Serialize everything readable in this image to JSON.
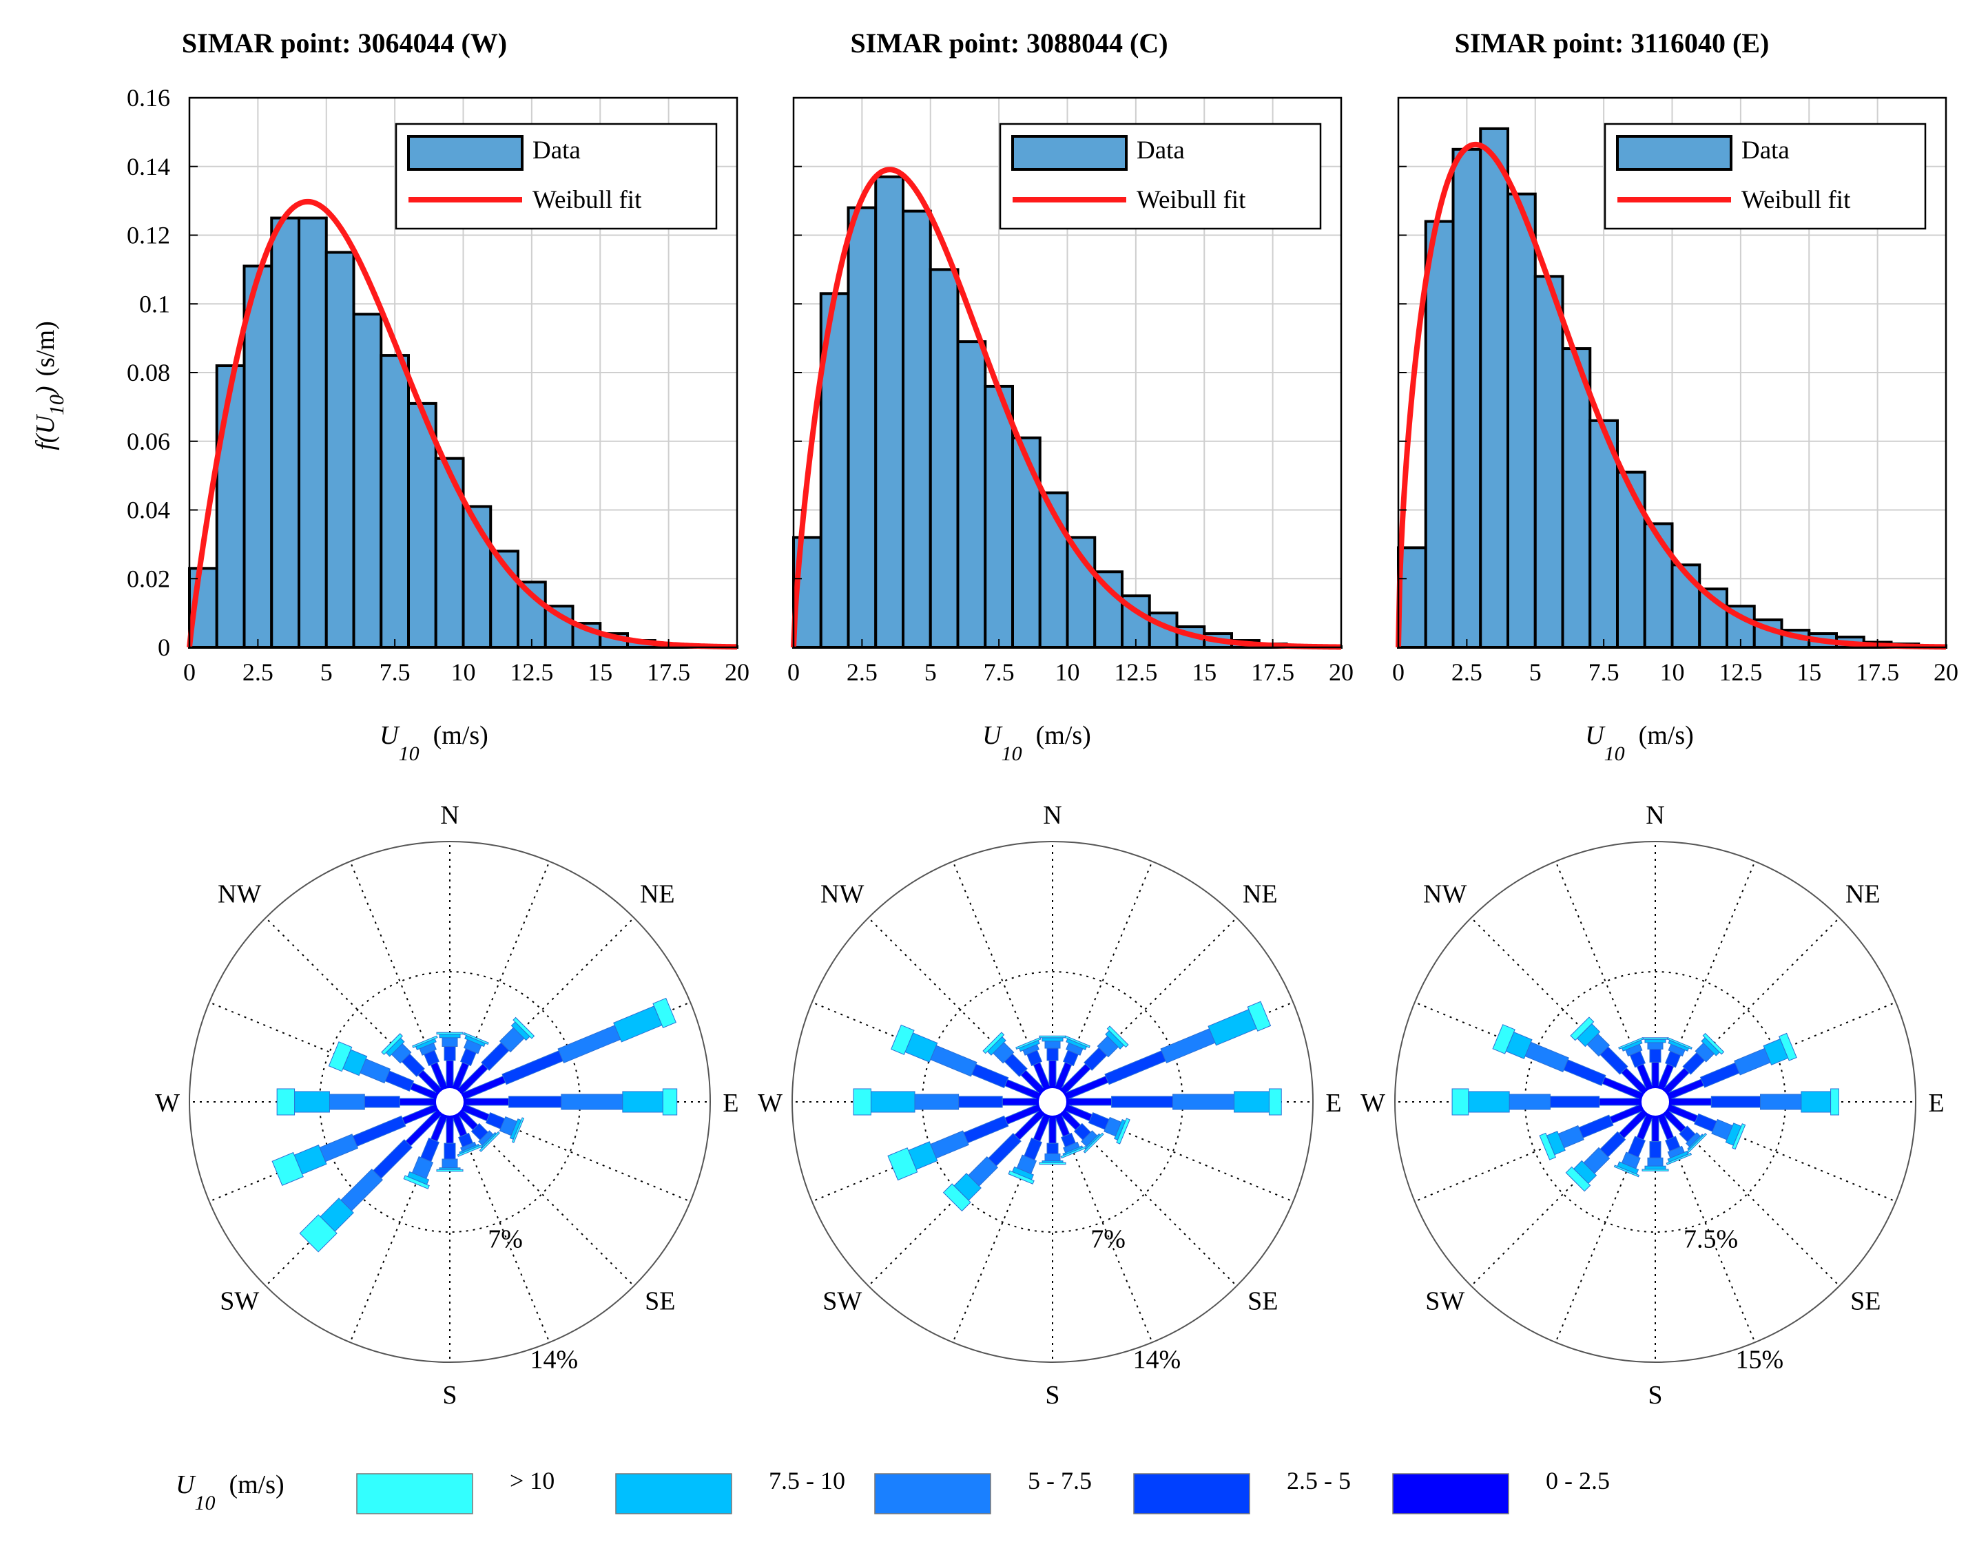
{
  "figure": {
    "ylabel_prefix": "f(U",
    "ylabel_sub": "10",
    "ylabel_suffix": ")",
    "ylabel_unit": "(s/m)",
    "xlabel_main": "U",
    "xlabel_sub": "10",
    "xlabel_unit": "(m/s)"
  },
  "chart_data": [
    {
      "type": "bar",
      "title": "SIMAR point: 3064044 (W)",
      "legend": [
        "Data",
        "Weibull fit"
      ],
      "legend_position": "top-right",
      "grid": true,
      "xlim": [
        0,
        20
      ],
      "ylim": [
        0,
        0.16
      ],
      "xticks": [
        "0",
        "2.5",
        "5",
        "7.5",
        "10",
        "12.5",
        "15",
        "17.5",
        "20"
      ],
      "yticks": [
        "0",
        "0.02",
        "0.04",
        "0.06",
        "0.08",
        "0.1",
        "0.12",
        "0.14",
        "0.16"
      ],
      "bin_width": 1,
      "bin_starts": [
        0,
        1,
        2,
        3,
        4,
        5,
        6,
        7,
        8,
        9,
        10,
        11,
        12,
        13,
        14,
        15,
        16,
        17,
        18,
        19
      ],
      "values": [
        0.023,
        0.082,
        0.111,
        0.125,
        0.125,
        0.115,
        0.097,
        0.085,
        0.071,
        0.055,
        0.041,
        0.028,
        0.019,
        0.012,
        0.007,
        0.004,
        0.002,
        0.001,
        0.0005,
        0.0002
      ],
      "weibull": {
        "k": 1.9,
        "lambda": 6.4
      },
      "colors": {
        "bar": "#5ba3d6",
        "fit": "#ff1a1a"
      }
    },
    {
      "type": "bar",
      "title": "SIMAR point: 3088044 (C)",
      "legend": [
        "Data",
        "Weibull fit"
      ],
      "legend_position": "top-right",
      "grid": true,
      "xlim": [
        0,
        20
      ],
      "ylim": [
        0,
        0.16
      ],
      "xticks": [
        "0",
        "2.5",
        "5",
        "7.5",
        "10",
        "12.5",
        "15",
        "17.5",
        "20"
      ],
      "yticks": [
        "0",
        "0.02",
        "0.04",
        "0.06",
        "0.08",
        "0.1",
        "0.12",
        "0.14",
        "0.16"
      ],
      "bin_width": 1,
      "bin_starts": [
        0,
        1,
        2,
        3,
        4,
        5,
        6,
        7,
        8,
        9,
        10,
        11,
        12,
        13,
        14,
        15,
        16,
        17,
        18,
        19
      ],
      "values": [
        0.032,
        0.103,
        0.128,
        0.137,
        0.127,
        0.11,
        0.089,
        0.076,
        0.061,
        0.045,
        0.032,
        0.022,
        0.015,
        0.01,
        0.006,
        0.004,
        0.002,
        0.001,
        0.0005,
        0.0002
      ],
      "weibull": {
        "k": 1.75,
        "lambda": 5.7
      },
      "colors": {
        "bar": "#5ba3d6",
        "fit": "#ff1a1a"
      }
    },
    {
      "type": "bar",
      "title": "SIMAR point: 3116040 (E)",
      "legend": [
        "Data",
        "Weibull fit"
      ],
      "legend_position": "top-right",
      "grid": true,
      "xlim": [
        0,
        20
      ],
      "ylim": [
        0,
        0.16
      ],
      "xticks": [
        "0",
        "2.5",
        "5",
        "7.5",
        "10",
        "12.5",
        "15",
        "17.5",
        "20"
      ],
      "yticks": [
        "0",
        "0.02",
        "0.04",
        "0.06",
        "0.08",
        "0.1",
        "0.12",
        "0.14",
        "0.16"
      ],
      "bin_width": 1,
      "bin_starts": [
        0,
        1,
        2,
        3,
        4,
        5,
        6,
        7,
        8,
        9,
        10,
        11,
        12,
        13,
        14,
        15,
        16,
        17,
        18,
        19
      ],
      "values": [
        0.029,
        0.124,
        0.145,
        0.151,
        0.132,
        0.108,
        0.087,
        0.066,
        0.051,
        0.036,
        0.024,
        0.017,
        0.012,
        0.008,
        0.005,
        0.004,
        0.003,
        0.0015,
        0.001,
        0.0005
      ],
      "weibull": {
        "k": 1.6,
        "lambda": 5.2
      },
      "colors": {
        "bar": "#5ba3d6",
        "fit": "#ff1a1a"
      }
    }
  ],
  "wind_roses": {
    "directions": [
      "N",
      "NNE",
      "NE",
      "ENE",
      "E",
      "ESE",
      "SE",
      "SSE",
      "S",
      "SSW",
      "SW",
      "WSW",
      "W",
      "WNW",
      "NW",
      "NNW"
    ],
    "cardinal_labels": [
      "N",
      "NE",
      "E",
      "SE",
      "S",
      "SW",
      "W",
      "NW"
    ],
    "legend_title_main": "U",
    "legend_title_sub": "10",
    "legend_title_unit": "(m/s)",
    "bins": [
      {
        "label": "> 10",
        "color": "#33ffff"
      },
      {
        "label": "7.5 - 10",
        "color": "#00bfff"
      },
      {
        "label": "5 - 7.5",
        "color": "#1a80ff"
      },
      {
        "label": "2.5 - 5",
        "color": "#0040ff"
      },
      {
        "label": "0 - 2.5",
        "color": "#0000ff"
      }
    ],
    "roses": [
      {
        "max_pct": 14,
        "ring_labels": [
          "7%",
          "14%"
        ],
        "cumulative_pct": [
          [
            1.5,
            2.3,
            2.8,
            3.0,
            3.1
          ],
          [
            1.5,
            2.3,
            2.8,
            3.0,
            3.1
          ],
          [
            2.0,
            3.6,
            4.7,
            5.0,
            5.2
          ],
          [
            2.5,
            6.0,
            9.5,
            12.0,
            12.8
          ],
          [
            2.5,
            5.5,
            9.0,
            11.3,
            12.1
          ],
          [
            1.5,
            2.4,
            3.1,
            3.3,
            3.4
          ],
          [
            1.2,
            1.9,
            2.2,
            2.3,
            2.4
          ],
          [
            1.2,
            1.8,
            2.0,
            2.1,
            2.2
          ],
          [
            1.5,
            2.4,
            2.9,
            3.0,
            3.1
          ],
          [
            1.5,
            2.7,
            3.7,
            4.0,
            4.2
          ],
          [
            2.5,
            5.0,
            7.5,
            9.0,
            10.5
          ],
          [
            2.0,
            5.0,
            7.0,
            8.5,
            9.8
          ],
          [
            2.0,
            4.0,
            6.0,
            8.0,
            9.0
          ],
          [
            1.5,
            3.0,
            4.5,
            5.5,
            6.3
          ],
          [
            1.5,
            2.7,
            3.4,
            3.7,
            3.9
          ],
          [
            1.5,
            2.2,
            2.6,
            2.8,
            2.9
          ]
        ]
      },
      {
        "max_pct": 14,
        "ring_labels": [
          "7%",
          "14%"
        ],
        "cumulative_pct": [
          [
            1.5,
            2.2,
            2.6,
            2.8,
            2.9
          ],
          [
            1.5,
            2.2,
            2.6,
            2.8,
            2.9
          ],
          [
            2.0,
            3.2,
            4.0,
            4.3,
            4.5
          ],
          [
            2.5,
            6.0,
            9.0,
            11.5,
            12.3
          ],
          [
            2.5,
            6.0,
            9.5,
            11.5,
            12.2
          ],
          [
            1.5,
            2.5,
            3.2,
            3.4,
            3.6
          ],
          [
            1.2,
            1.9,
            2.3,
            2.4,
            2.5
          ],
          [
            1.2,
            1.8,
            2.1,
            2.2,
            2.3
          ],
          [
            1.5,
            2.1,
            2.5,
            2.6,
            2.7
          ],
          [
            1.5,
            2.6,
            3.4,
            3.7,
            3.9
          ],
          [
            2.0,
            4.0,
            5.5,
            6.5,
            7.2
          ],
          [
            2.0,
            4.5,
            6.5,
            7.8,
            9.0
          ],
          [
            2.0,
            4.5,
            7.0,
            9.5,
            10.5
          ],
          [
            2.0,
            4.0,
            6.5,
            8.0,
            8.8
          ],
          [
            1.5,
            2.7,
            3.5,
            3.8,
            4.0
          ],
          [
            1.5,
            2.2,
            2.5,
            2.7,
            2.8
          ]
        ]
      },
      {
        "max_pct": 15,
        "ring_labels": [
          "7.5%",
          "15%"
        ],
        "cumulative_pct": [
          [
            1.5,
            2.3,
            2.7,
            2.9,
            3.0
          ],
          [
            1.5,
            2.3,
            2.7,
            2.9,
            3.0
          ],
          [
            1.8,
            3.0,
            3.7,
            4.0,
            4.2
          ],
          [
            2.2,
            4.5,
            6.5,
            7.6,
            8.1
          ],
          [
            2.5,
            5.5,
            8.0,
            9.8,
            10.3
          ],
          [
            1.8,
            3.0,
            4.0,
            4.5,
            4.7
          ],
          [
            1.5,
            2.2,
            2.5,
            2.6,
            2.7
          ],
          [
            1.5,
            2.2,
            2.6,
            2.8,
            2.9
          ],
          [
            1.5,
            2.5,
            3.0,
            3.2,
            3.3
          ],
          [
            1.5,
            2.6,
            3.3,
            3.6,
            3.7
          ],
          [
            2.0,
            3.5,
            4.8,
            5.5,
            6.0
          ],
          [
            2.0,
            4.0,
            5.3,
            6.0,
            6.4
          ],
          [
            2.5,
            5.5,
            8.0,
            10.5,
            11.5
          ],
          [
            2.5,
            5.0,
            7.5,
            8.7,
            9.5
          ],
          [
            1.8,
            3.5,
            4.5,
            5.2,
            5.6
          ],
          [
            1.5,
            2.3,
            2.7,
            2.9,
            3.0
          ]
        ]
      }
    ]
  }
}
